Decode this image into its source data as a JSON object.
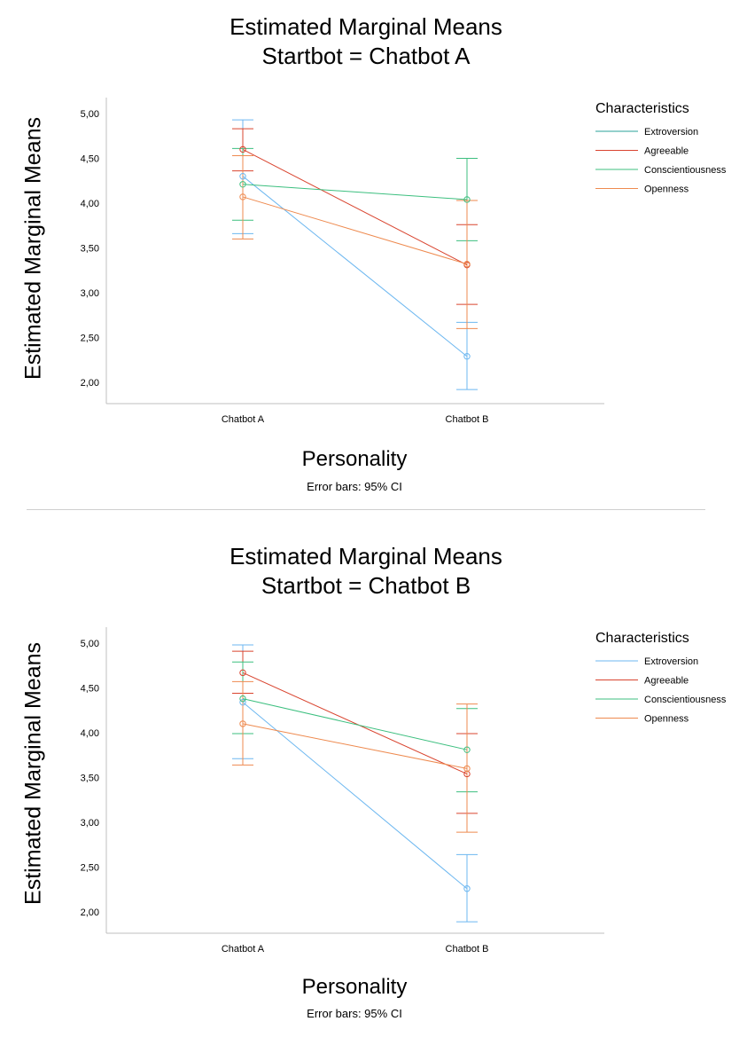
{
  "chart_data": [
    {
      "type": "line",
      "title": "Estimated Marginal Means",
      "subtitle": "Startbot = Chatbot A",
      "xlabel": "Personality",
      "ylabel": "Estimated Marginal Means",
      "footnote": "Error bars: 95% CI",
      "categories": [
        "Chatbot A",
        "Chatbot B"
      ],
      "ylim": [
        1.8,
        5.2
      ],
      "yticks": [
        2.0,
        2.5,
        3.0,
        3.5,
        4.0,
        4.5,
        5.0
      ],
      "ytick_labels": [
        "2,00",
        "2,50",
        "3,00",
        "3,50",
        "4,00",
        "4,50",
        "5,00"
      ],
      "legend_title": "Characteristics",
      "series": [
        {
          "name": "Extroversion",
          "color": "#6cb7f0",
          "legend_color": "#2aa198",
          "values": [
            4.3,
            2.29
          ],
          "ci_low": [
            3.66,
            1.92
          ],
          "ci_high": [
            4.93,
            2.67
          ]
        },
        {
          "name": "Agreeable",
          "color": "#d9442f",
          "legend_color": "#d9442f",
          "values": [
            4.6,
            3.31
          ],
          "ci_low": [
            4.36,
            2.87
          ],
          "ci_high": [
            4.83,
            3.76
          ]
        },
        {
          "name": "Conscientiousness",
          "color": "#3cbf7f",
          "legend_color": "#3cbf7f",
          "values": [
            4.21,
            4.04
          ],
          "ci_low": [
            3.81,
            3.58
          ],
          "ci_high": [
            4.61,
            4.5
          ]
        },
        {
          "name": "Openness",
          "color": "#ee8a4f",
          "legend_color": "#ee8a4f",
          "values": [
            4.07,
            3.32
          ],
          "ci_low": [
            3.6,
            2.6
          ],
          "ci_high": [
            4.53,
            4.03
          ]
        }
      ]
    },
    {
      "type": "line",
      "title": "Estimated Marginal Means",
      "subtitle": "Startbot = Chatbot B",
      "xlabel": "Personality",
      "ylabel": "Estimated Marginal Means",
      "footnote": "Error bars: 95% CI",
      "categories": [
        "Chatbot A",
        "Chatbot B"
      ],
      "ylim": [
        1.8,
        5.2
      ],
      "yticks": [
        2.0,
        2.5,
        3.0,
        3.5,
        4.0,
        4.5,
        5.0
      ],
      "ytick_labels": [
        "2,00",
        "2,50",
        "3,00",
        "3,50",
        "4,00",
        "4,50",
        "5,00"
      ],
      "legend_title": "Characteristics",
      "series": [
        {
          "name": "Extroversion",
          "color": "#6cb7f0",
          "legend_color": "#6cb7f0",
          "values": [
            4.34,
            2.26
          ],
          "ci_low": [
            3.71,
            1.89
          ],
          "ci_high": [
            4.98,
            2.64
          ]
        },
        {
          "name": "Agreeable",
          "color": "#d9442f",
          "legend_color": "#d9442f",
          "values": [
            4.67,
            3.54
          ],
          "ci_low": [
            4.44,
            3.1
          ],
          "ci_high": [
            4.91,
            3.99
          ]
        },
        {
          "name": "Conscientiousness",
          "color": "#3cbf7f",
          "legend_color": "#3cbf7f",
          "values": [
            4.38,
            3.81
          ],
          "ci_low": [
            3.99,
            3.34
          ],
          "ci_high": [
            4.79,
            4.27
          ]
        },
        {
          "name": "Openness",
          "color": "#ee8a4f",
          "legend_color": "#ee8a4f",
          "values": [
            4.1,
            3.6
          ],
          "ci_low": [
            3.64,
            2.89
          ],
          "ci_high": [
            4.57,
            4.32
          ]
        }
      ]
    }
  ]
}
